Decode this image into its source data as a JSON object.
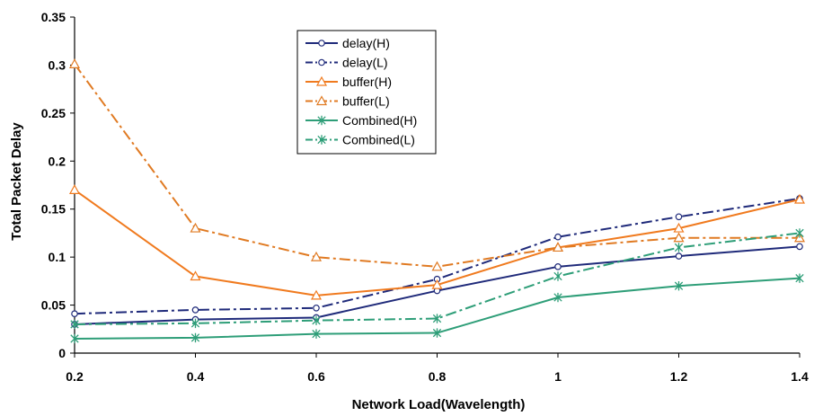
{
  "chart_data": {
    "type": "line",
    "title": "",
    "xlabel": "Network Load(Wavelength)",
    "ylabel": "Total Packet Delay",
    "x": [
      0.2,
      0.4,
      0.6,
      0.8,
      1,
      1.2,
      1.4
    ],
    "x_tick_labels": [
      "0.2",
      "0.4",
      "0.6",
      "0.8",
      "1",
      "1.2",
      "1.4"
    ],
    "y_tick_labels": [
      "0",
      "0.05",
      "0.1",
      "0.15",
      "0.2",
      "0.25",
      "0.3",
      "0.35"
    ],
    "xlim": [
      0.2,
      1.4
    ],
    "ylim": [
      0,
      0.35
    ],
    "grid": false,
    "legend_position": "top-center",
    "series": [
      {
        "name": "delay(H)",
        "color": "#1f2a7a",
        "dash": "solid",
        "marker": "circle",
        "values": [
          0.03,
          0.035,
          0.037,
          0.065,
          0.09,
          0.101,
          0.111
        ]
      },
      {
        "name": "delay(L)",
        "color": "#1f2a7a",
        "dash": "dashdot",
        "marker": "circle",
        "values": [
          0.041,
          0.045,
          0.047,
          0.077,
          0.121,
          0.142,
          0.161
        ]
      },
      {
        "name": "buffer(H)",
        "color": "#f07a1e",
        "dash": "solid",
        "marker": "triangle",
        "values": [
          0.17,
          0.08,
          0.06,
          0.071,
          0.11,
          0.13,
          0.16
        ]
      },
      {
        "name": "buffer(L)",
        "color": "#e07a22",
        "dash": "dashdot",
        "marker": "triangle",
        "values": [
          0.301,
          0.13,
          0.1,
          0.09,
          0.11,
          0.12,
          0.12
        ]
      },
      {
        "name": "Combined(H)",
        "color": "#2e9e78",
        "dash": "solid",
        "marker": "star",
        "values": [
          0.015,
          0.016,
          0.02,
          0.021,
          0.058,
          0.07,
          0.078
        ]
      },
      {
        "name": "Combined(L)",
        "color": "#2e9e78",
        "dash": "dashdot",
        "marker": "star",
        "values": [
          0.03,
          0.031,
          0.034,
          0.036,
          0.08,
          0.11,
          0.125
        ]
      }
    ]
  }
}
